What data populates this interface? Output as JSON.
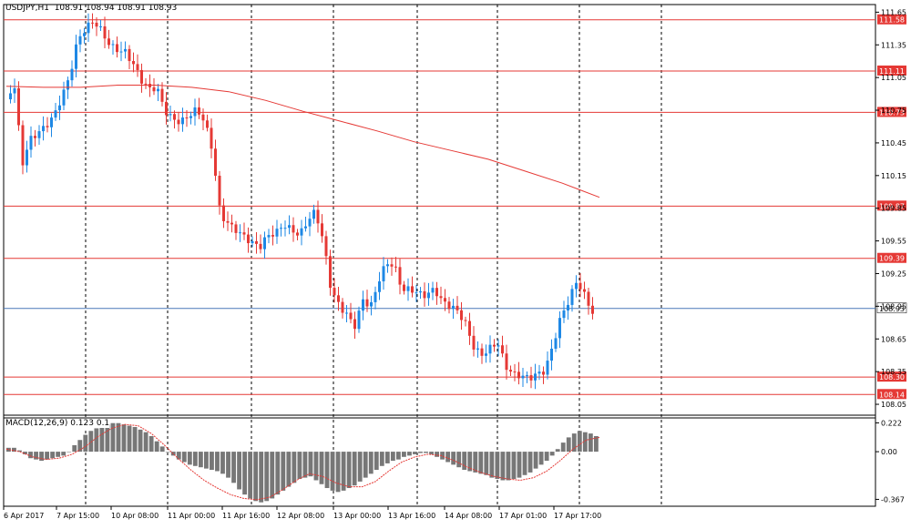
{
  "symbol_label": "USDJPY,H1",
  "ohlc_label": "108.91 108.94 108.91 108.93",
  "macd_label": "MACD(12,26,9) 0.123 0.1",
  "chart_data": {
    "type": "candlestick",
    "price_ticks": [
      "111.65",
      "111.35",
      "111.05",
      "110.75",
      "110.45",
      "110.15",
      "109.85",
      "109.55",
      "109.25",
      "108.95",
      "108.65",
      "108.35",
      "108.05"
    ],
    "price_range": [
      107.95,
      111.72
    ],
    "horizontal_levels": [
      {
        "value": 111.58,
        "label": "111.58"
      },
      {
        "value": 111.11,
        "label": "111.11"
      },
      {
        "value": 110.73,
        "label": "110.73"
      },
      {
        "value": 109.87,
        "label": "109.87"
      },
      {
        "value": 109.39,
        "label": "109.39"
      },
      {
        "value": 108.3,
        "label": "108.30"
      },
      {
        "value": 108.14,
        "label": "108.14"
      }
    ],
    "current_price": {
      "value": 108.93,
      "label": "108.93"
    },
    "time_labels": [
      "6 Apr 2017",
      "7 Apr 15:00",
      "10 Apr 08:00",
      "11 Apr 00:00",
      "11 Apr 16:00",
      "12 Apr 08:00",
      "13 Apr 00:00",
      "13 Apr 16:00",
      "14 Apr 08:00",
      "17 Apr 01:00",
      "17 Apr 17:00"
    ],
    "price_path": [
      110.85,
      110.95,
      110.2,
      110.45,
      110.55,
      110.65,
      110.75,
      110.9,
      111.05,
      111.35,
      111.45,
      111.55,
      111.5,
      111.4,
      111.35,
      111.3,
      111.15,
      110.98,
      110.9,
      110.95,
      110.78,
      110.72,
      110.68,
      110.7,
      110.72,
      110.6,
      110.35,
      109.8,
      109.75,
      109.7,
      109.62,
      109.52,
      109.45,
      109.55,
      109.6,
      109.72,
      109.7,
      109.65,
      109.75,
      109.8,
      109.5,
      109.05,
      108.95,
      108.9,
      108.82,
      109.05,
      108.95,
      109.15,
      109.3,
      109.28,
      109.1,
      109.15,
      109.12,
      109.08,
      109.1,
      108.95,
      108.9,
      108.88,
      108.8,
      108.62,
      108.55,
      108.58,
      108.6,
      108.35,
      108.28,
      108.3,
      108.32,
      108.38,
      108.4,
      108.6,
      108.82,
      108.95,
      109.15,
      109.05,
      108.93
    ],
    "ma_path": [
      110.97,
      110.96,
      110.96,
      110.98,
      110.98,
      110.96,
      110.92,
      110.84,
      110.74,
      110.65,
      110.56,
      110.46,
      110.38,
      110.3,
      110.19,
      110.08,
      109.95
    ],
    "macd": {
      "ticks": [
        "0.222",
        "0.00",
        "-0.367"
      ],
      "range": [
        -0.42,
        0.26
      ],
      "histogram": [
        0.03,
        0.03,
        0.01,
        -0.02,
        -0.05,
        -0.06,
        -0.07,
        -0.06,
        -0.05,
        -0.04,
        -0.03,
        0.0,
        0.05,
        0.09,
        0.13,
        0.16,
        0.18,
        0.19,
        0.21,
        0.22,
        0.22,
        0.21,
        0.2,
        0.19,
        0.17,
        0.15,
        0.12,
        0.08,
        0.04,
        0.0,
        -0.03,
        -0.06,
        -0.08,
        -0.1,
        -0.11,
        -0.12,
        -0.13,
        -0.14,
        -0.15,
        -0.17,
        -0.2,
        -0.24,
        -0.29,
        -0.33,
        -0.36,
        -0.38,
        -0.39,
        -0.38,
        -0.36,
        -0.33,
        -0.3,
        -0.27,
        -0.24,
        -0.21,
        -0.2,
        -0.19,
        -0.22,
        -0.25,
        -0.28,
        -0.3,
        -0.31,
        -0.3,
        -0.28,
        -0.26,
        -0.23,
        -0.2,
        -0.17,
        -0.14,
        -0.11,
        -0.09,
        -0.07,
        -0.06,
        -0.04,
        -0.03,
        -0.02,
        -0.01,
        -0.01,
        -0.02,
        -0.04,
        -0.06,
        -0.08,
        -0.1,
        -0.12,
        -0.14,
        -0.15,
        -0.16,
        -0.17,
        -0.18,
        -0.2,
        -0.21,
        -0.22,
        -0.22,
        -0.21,
        -0.2,
        -0.18,
        -0.16,
        -0.13,
        -0.1,
        -0.07,
        -0.03,
        0.02,
        0.07,
        0.11,
        0.14,
        0.16,
        0.15,
        0.14,
        0.12
      ],
      "signal": [
        0.02,
        0.0,
        -0.04,
        -0.06,
        -0.05,
        -0.02,
        0.04,
        0.12,
        0.18,
        0.21,
        0.2,
        0.14,
        0.05,
        -0.05,
        -0.14,
        -0.22,
        -0.28,
        -0.33,
        -0.36,
        -0.37,
        -0.35,
        -0.29,
        -0.22,
        -0.17,
        -0.19,
        -0.24,
        -0.27,
        -0.27,
        -0.23,
        -0.15,
        -0.08,
        -0.04,
        -0.02,
        -0.03,
        -0.07,
        -0.12,
        -0.16,
        -0.19,
        -0.21,
        -0.22,
        -0.2,
        -0.15,
        -0.07,
        0.02,
        0.09,
        0.11
      ]
    },
    "colors": {
      "up": "#1e88e5",
      "down": "#e53935",
      "level": "#e53935",
      "ma": "#e53935",
      "current": "#4a78b8",
      "hist": "#777777",
      "signal": "#e53935",
      "grid": "#000000"
    }
  }
}
